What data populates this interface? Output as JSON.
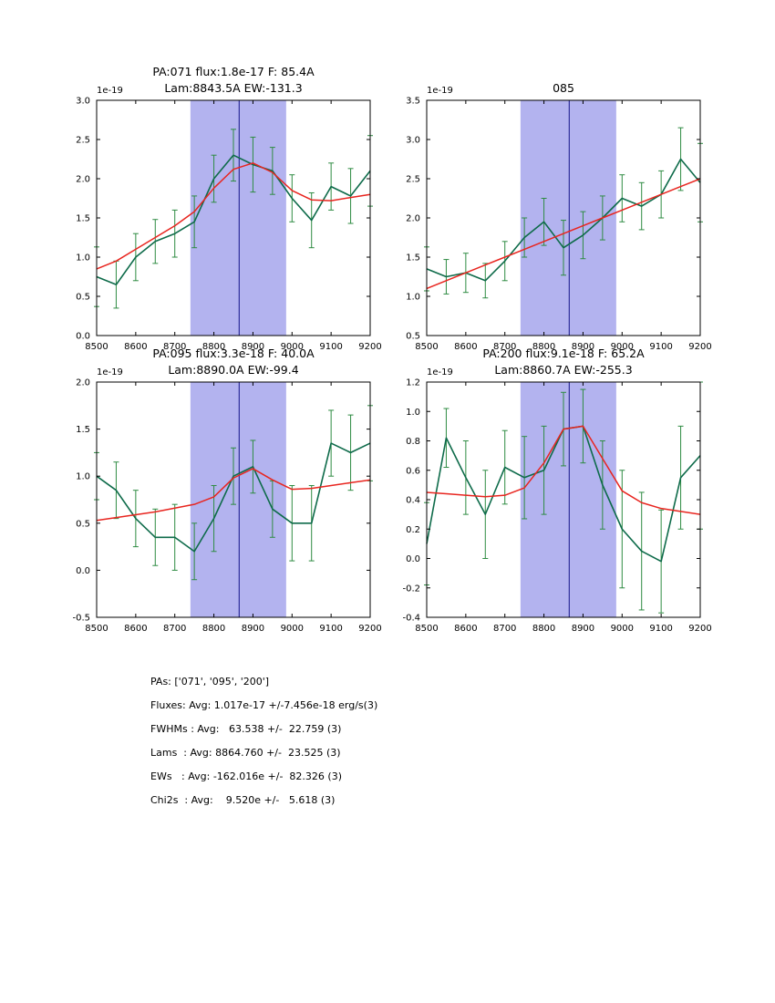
{
  "colors": {
    "spectrum": "#0e6b4a",
    "errorbar": "#2e8b42",
    "fit": "#e8251f",
    "band": "#b3b3ef",
    "vline": "#30309c",
    "axis": "#000000",
    "background": "#ffffff"
  },
  "summary": {
    "lines": [
      "PAs: ['071', '095', '200']",
      "Fluxes: Avg: 1.017e-17 +/-7.456e-18 erg/s(3)",
      "FWHMs : Avg:   63.538 +/-  22.759 (3)",
      "Lams  : Avg: 8864.760 +/-  23.525 (3)",
      "EWs   : Avg: -162.016e +/-  82.326 (3)",
      "Chi2s  : Avg:    9.520e +/-   5.618 (3)"
    ]
  },
  "chart_data": [
    {
      "type": "line",
      "title_lines": [
        "PA:071 flux:1.8e-17 F: 85.4A",
        "Lam:8843.5A EW:-131.3"
      ],
      "offset_label": "1e-19",
      "xlim": [
        8500,
        9200
      ],
      "ylim": [
        0.0,
        3.0
      ],
      "xticks": [
        8500,
        8600,
        8700,
        8800,
        8900,
        9000,
        9100,
        9200
      ],
      "yticks": [
        0.0,
        0.5,
        1.0,
        1.5,
        2.0,
        2.5,
        3.0
      ],
      "band": [
        8740,
        8985
      ],
      "vline": 8864.8,
      "legend": "off",
      "grid": "off",
      "series": [
        {
          "name": "spectrum",
          "x": [
            8500,
            8550,
            8600,
            8650,
            8700,
            8750,
            8800,
            8850,
            8900,
            8950,
            9000,
            9050,
            9100,
            9150,
            9200
          ],
          "y": [
            0.75,
            0.65,
            1.0,
            1.2,
            1.3,
            1.45,
            2.0,
            2.3,
            2.18,
            2.1,
            1.75,
            1.47,
            1.9,
            1.78,
            2.1
          ],
          "yerr": [
            0.38,
            0.3,
            0.3,
            0.28,
            0.3,
            0.33,
            0.3,
            0.33,
            0.35,
            0.3,
            0.3,
            0.35,
            0.3,
            0.35,
            0.45
          ]
        },
        {
          "name": "fit",
          "x": [
            8500,
            8550,
            8600,
            8650,
            8700,
            8750,
            8800,
            8850,
            8900,
            8950,
            9000,
            9050,
            9100,
            9150,
            9200
          ],
          "y": [
            0.85,
            0.95,
            1.1,
            1.25,
            1.4,
            1.58,
            1.88,
            2.12,
            2.2,
            2.08,
            1.85,
            1.73,
            1.72,
            1.76,
            1.8
          ]
        }
      ]
    },
    {
      "type": "line",
      "title_lines": [
        "085"
      ],
      "offset_label": "1e-19",
      "xlim": [
        8500,
        9200
      ],
      "ylim": [
        0.5,
        3.5
      ],
      "xticks": [
        8500,
        8600,
        8700,
        8800,
        8900,
        9000,
        9100,
        9200
      ],
      "yticks": [
        0.5,
        1.0,
        1.5,
        2.0,
        2.5,
        3.0,
        3.5
      ],
      "band": [
        8740,
        8985
      ],
      "vline": 8864.8,
      "legend": "off",
      "grid": "off",
      "series": [
        {
          "name": "spectrum",
          "x": [
            8500,
            8550,
            8600,
            8650,
            8700,
            8750,
            8800,
            8850,
            8900,
            8950,
            9000,
            9050,
            9100,
            9150,
            9200
          ],
          "y": [
            1.35,
            1.25,
            1.3,
            1.2,
            1.45,
            1.75,
            1.95,
            1.62,
            1.78,
            2.0,
            2.25,
            2.15,
            2.3,
            2.75,
            2.45
          ],
          "yerr": [
            0.28,
            0.22,
            0.25,
            0.22,
            0.25,
            0.25,
            0.3,
            0.35,
            0.3,
            0.28,
            0.3,
            0.3,
            0.3,
            0.4,
            0.5
          ]
        },
        {
          "name": "fit",
          "x": [
            8500,
            8550,
            8600,
            8650,
            8700,
            8750,
            8800,
            8850,
            8900,
            8950,
            9000,
            9050,
            9100,
            9150,
            9200
          ],
          "y": [
            1.1,
            1.2,
            1.3,
            1.4,
            1.5,
            1.6,
            1.7,
            1.8,
            1.9,
            2.0,
            2.1,
            2.2,
            2.3,
            2.4,
            2.5
          ]
        }
      ]
    },
    {
      "type": "line",
      "title_lines": [
        "PA:095 flux:3.3e-18 F: 40.0A",
        "Lam:8890.0A EW:-99.4"
      ],
      "offset_label": "1e-19",
      "xlim": [
        8500,
        9200
      ],
      "ylim": [
        -0.5,
        2.0
      ],
      "xticks": [
        8500,
        8600,
        8700,
        8800,
        8900,
        9000,
        9100,
        9200
      ],
      "yticks": [
        -0.5,
        0.0,
        0.5,
        1.0,
        1.5,
        2.0
      ],
      "band": [
        8740,
        8985
      ],
      "vline": 8864.8,
      "legend": "off",
      "grid": "off",
      "series": [
        {
          "name": "spectrum",
          "x": [
            8500,
            8550,
            8600,
            8650,
            8700,
            8750,
            8800,
            8850,
            8900,
            8950,
            9000,
            9050,
            9100,
            9150,
            9200
          ],
          "y": [
            1.0,
            0.85,
            0.55,
            0.35,
            0.35,
            0.2,
            0.55,
            1.0,
            1.1,
            0.65,
            0.5,
            0.5,
            1.35,
            1.25,
            1.35
          ],
          "yerr": [
            0.25,
            0.3,
            0.3,
            0.3,
            0.35,
            0.3,
            0.35,
            0.3,
            0.28,
            0.3,
            0.4,
            0.4,
            0.35,
            0.4,
            0.4
          ]
        },
        {
          "name": "fit",
          "x": [
            8500,
            8550,
            8600,
            8650,
            8700,
            8750,
            8800,
            8850,
            8900,
            8950,
            9000,
            9050,
            9100,
            9150,
            9200
          ],
          "y": [
            0.53,
            0.56,
            0.59,
            0.62,
            0.66,
            0.7,
            0.78,
            0.98,
            1.08,
            0.96,
            0.86,
            0.87,
            0.9,
            0.93,
            0.96
          ]
        }
      ]
    },
    {
      "type": "line",
      "title_lines": [
        "PA:200 flux:9.1e-18 F: 65.2A",
        "Lam:8860.7A EW:-255.3"
      ],
      "offset_label": "1e-19",
      "xlim": [
        8500,
        9200
      ],
      "ylim": [
        -0.4,
        1.2
      ],
      "xticks": [
        8500,
        8600,
        8700,
        8800,
        8900,
        9000,
        9100,
        9200
      ],
      "yticks": [
        -0.4,
        -0.2,
        0.0,
        0.2,
        0.4,
        0.6,
        0.8,
        1.0,
        1.2
      ],
      "band": [
        8740,
        8985
      ],
      "vline": 8864.8,
      "legend": "off",
      "grid": "off",
      "series": [
        {
          "name": "spectrum",
          "x": [
            8500,
            8550,
            8600,
            8650,
            8700,
            8750,
            8800,
            8850,
            8900,
            8950,
            9000,
            9050,
            9100,
            9150,
            9200
          ],
          "y": [
            0.1,
            0.82,
            0.55,
            0.3,
            0.62,
            0.55,
            0.6,
            0.88,
            0.9,
            0.5,
            0.2,
            0.05,
            -0.02,
            0.55,
            0.7
          ],
          "yerr": [
            0.28,
            0.2,
            0.25,
            0.3,
            0.25,
            0.28,
            0.3,
            0.25,
            0.25,
            0.3,
            0.4,
            0.4,
            0.35,
            0.35,
            0.5
          ]
        },
        {
          "name": "fit",
          "x": [
            8500,
            8550,
            8600,
            8650,
            8700,
            8750,
            8800,
            8850,
            8900,
            8950,
            9000,
            9050,
            9100,
            9150,
            9200
          ],
          "y": [
            0.45,
            0.44,
            0.43,
            0.42,
            0.43,
            0.48,
            0.65,
            0.88,
            0.9,
            0.68,
            0.46,
            0.38,
            0.34,
            0.32,
            0.3
          ]
        }
      ]
    }
  ]
}
